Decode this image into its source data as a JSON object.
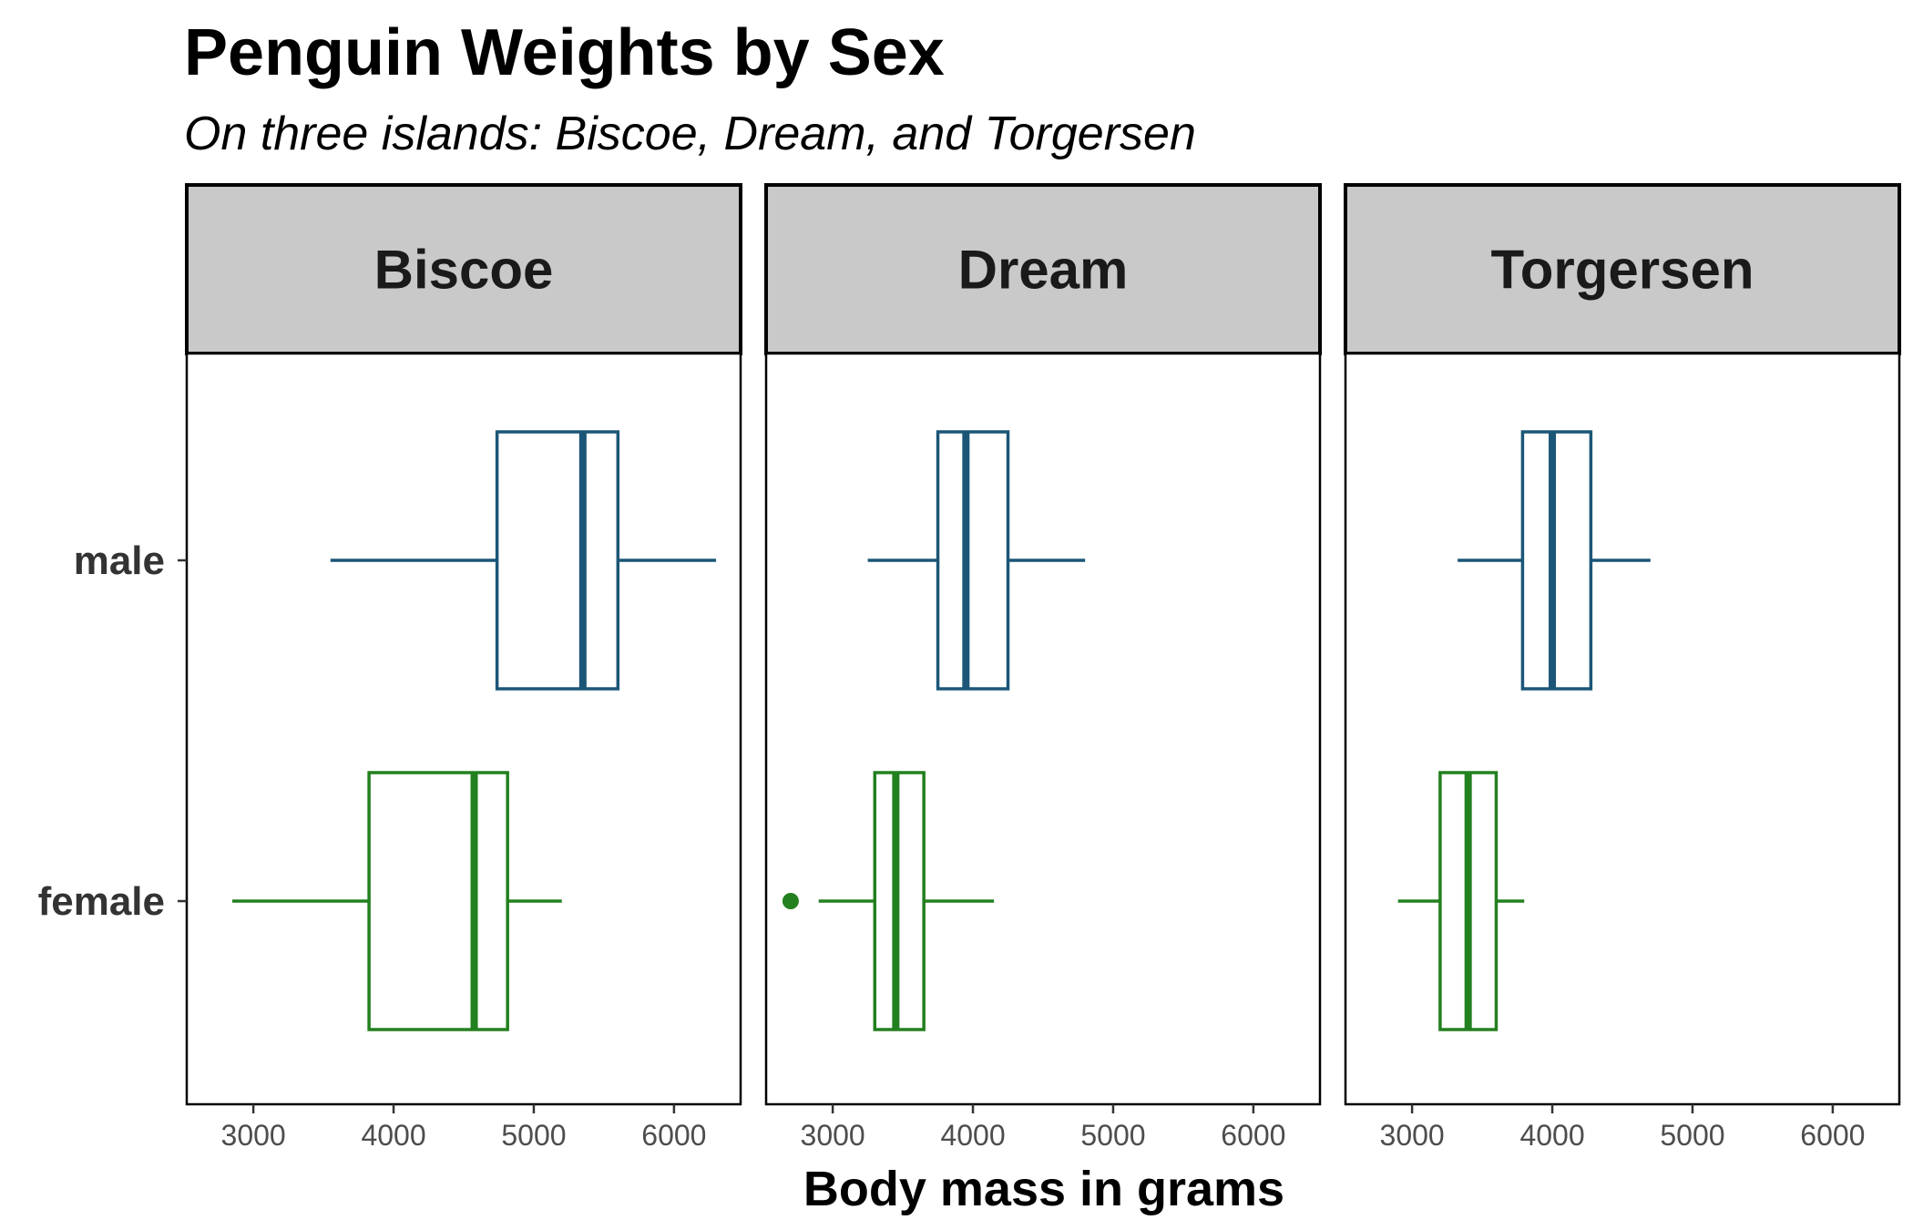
{
  "chart_data": {
    "type": "boxplot",
    "title": "Penguin Weights by Sex",
    "subtitle": "On three islands: Biscoe, Dream, and Torgersen",
    "xlabel": "Body mass in grams",
    "ylabel": "",
    "xlim": [
      2525,
      6475
    ],
    "x_ticks": [
      3000,
      4000,
      5000,
      6000
    ],
    "categories": [
      "female",
      "male"
    ],
    "colors": {
      "male": "#1b5677",
      "female": "#23801f"
    },
    "grid": false,
    "legend": "none",
    "panels": [
      {
        "facet": "Biscoe",
        "boxes": [
          {
            "sex": "male",
            "min": 3550,
            "q1": 4738,
            "median": 5350,
            "q3": 5600,
            "max": 6300,
            "outliers": []
          },
          {
            "sex": "female",
            "min": 2850,
            "q1": 3825,
            "median": 4575,
            "q3": 4813,
            "max": 5200,
            "outliers": []
          }
        ]
      },
      {
        "facet": "Dream",
        "boxes": [
          {
            "sex": "male",
            "min": 3250,
            "q1": 3750,
            "median": 3950,
            "q3": 4250,
            "max": 4800,
            "outliers": []
          },
          {
            "sex": "female",
            "min": 2900,
            "q1": 3300,
            "median": 3450,
            "q3": 3650,
            "max": 4150,
            "outliers": [
              2700
            ]
          }
        ]
      },
      {
        "facet": "Torgersen",
        "boxes": [
          {
            "sex": "male",
            "min": 3325,
            "q1": 3788,
            "median": 4000,
            "q3": 4275,
            "max": 4700,
            "outliers": []
          },
          {
            "sex": "female",
            "min": 2900,
            "q1": 3200,
            "median": 3400,
            "q3": 3600,
            "max": 3800,
            "outliers": []
          }
        ]
      }
    ]
  }
}
